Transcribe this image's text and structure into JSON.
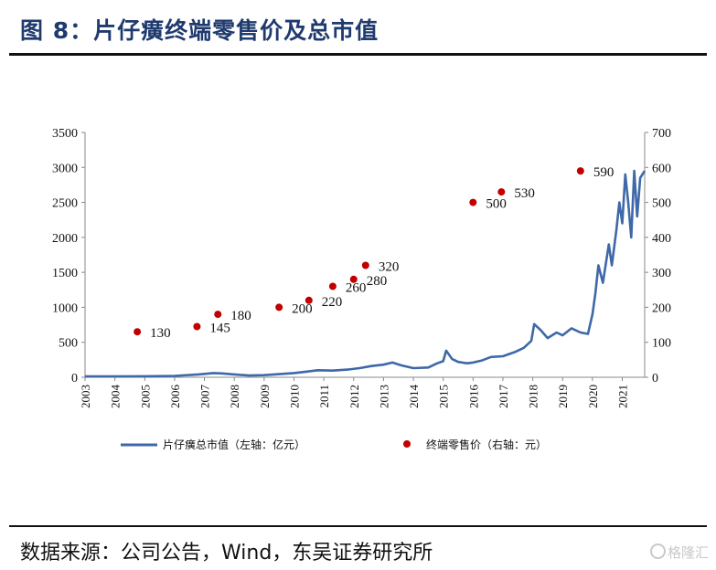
{
  "header": {
    "title": "图 8：片仔癀终端零售价及总市值"
  },
  "footer": {
    "source": "数据来源：公司公告，Wind，东吴证券研究所",
    "watermark": "格隆汇"
  },
  "colors": {
    "market_cap_line": "#3e68a8",
    "price_dot": "#c00000",
    "title": "#1f3a6e"
  },
  "chart_data": {
    "type": "line",
    "title": "",
    "xlabel": "",
    "ylabel": "",
    "x_ticks": [
      "2003",
      "2004",
      "2005",
      "2006",
      "2007",
      "2008",
      "2009",
      "2010",
      "2011",
      "2012",
      "2013",
      "2014",
      "2015",
      "2016",
      "2017",
      "2018",
      "2019",
      "2020",
      "2021"
    ],
    "xlim": [
      2003,
      2021.75
    ],
    "ylim_left": [
      0,
      3500
    ],
    "ylim_right": [
      0,
      700
    ],
    "y_ticks_left": [
      "0",
      "500",
      "1000",
      "1500",
      "2000",
      "2500",
      "3000",
      "3500"
    ],
    "y_ticks_right": [
      "0",
      "100",
      "200",
      "300",
      "400",
      "500",
      "600",
      "700"
    ],
    "legend_position": "bottom",
    "series": [
      {
        "name": "片仔癀总市值（左轴：亿元）",
        "axis": "left",
        "x": [
          2003.0,
          2004.0,
          2005.0,
          2006.0,
          2006.8,
          2007.3,
          2007.6,
          2008.0,
          2008.5,
          2009.0,
          2009.5,
          2010.0,
          2010.4,
          2010.8,
          2011.3,
          2011.8,
          2012.2,
          2012.6,
          2013.0,
          2013.3,
          2013.6,
          2014.0,
          2014.5,
          2014.8,
          2015.0,
          2015.1,
          2015.3,
          2015.5,
          2015.8,
          2016.0,
          2016.3,
          2016.6,
          2017.0,
          2017.4,
          2017.7,
          2017.95,
          2018.05,
          2018.25,
          2018.5,
          2018.8,
          2019.0,
          2019.3,
          2019.6,
          2019.85,
          2020.0,
          2020.1,
          2020.2,
          2020.35,
          2020.55,
          2020.65,
          2020.8,
          2020.9,
          2021.0,
          2021.1,
          2021.2,
          2021.3,
          2021.4,
          2021.5,
          2021.6,
          2021.75
        ],
        "values": [
          12,
          12,
          15,
          20,
          40,
          60,
          55,
          40,
          25,
          30,
          45,
          60,
          80,
          100,
          95,
          110,
          130,
          160,
          180,
          210,
          170,
          130,
          140,
          200,
          230,
          380,
          260,
          220,
          200,
          210,
          240,
          290,
          300,
          360,
          420,
          520,
          760,
          680,
          560,
          640,
          600,
          700,
          640,
          620,
          900,
          1200,
          1600,
          1350,
          1900,
          1600,
          2100,
          2500,
          2200,
          2900,
          2500,
          2000,
          2950,
          2300,
          2850,
          2950
        ]
      },
      {
        "name": "终端零售价（右轴：元）",
        "axis": "right",
        "type": "scatter",
        "x": [
          2004.75,
          2006.75,
          2007.45,
          2009.5,
          2010.5,
          2011.3,
          2012.0,
          2012.4,
          2016.0,
          2016.95,
          2019.6
        ],
        "values": [
          130,
          145,
          180,
          200,
          220,
          260,
          280,
          320,
          500,
          530,
          590
        ],
        "labels": [
          "130",
          "145",
          "180",
          "200",
          "220",
          "260",
          "280",
          "320",
          "500",
          "530",
          "590"
        ]
      }
    ]
  }
}
